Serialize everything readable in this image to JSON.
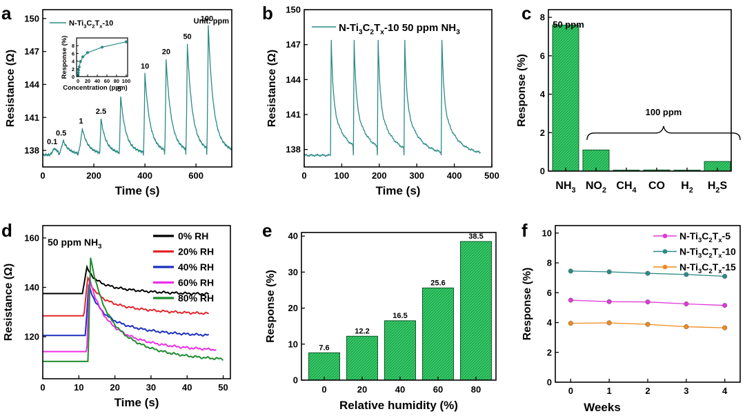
{
  "colors": {
    "teal": "#2a8a84",
    "green": "#33cc66",
    "greenDark": "#1e8c45",
    "black": "#000000",
    "red": "#e3262b",
    "blue": "#1a2fc0",
    "magenta": "#ee2fe6",
    "darkgreen": "#1f8c2e",
    "orange": "#f08a1d",
    "pink": "#e03ad8"
  },
  "chart_data": [
    {
      "panel": "a",
      "type": "line",
      "xlabel": "Time (s)",
      "ylabel": "Resistance (Ω)",
      "xlim": [
        0,
        740
      ],
      "ylim": [
        136.5,
        150.8
      ],
      "xticks": [
        "0",
        "200",
        "400",
        "600"
      ],
      "yticks": [
        "138",
        "141",
        "144",
        "147",
        "150"
      ],
      "legend": "N-Ti3C2Tx-10",
      "unit_note": "Unit: ppm",
      "concentrations": [
        "0.1",
        "0.5",
        "1",
        "2.5",
        "5",
        "10",
        "20",
        "50",
        "100"
      ],
      "peak_times": [
        45,
        80,
        155,
        228,
        305,
        400,
        483,
        566,
        648
      ],
      "peak_values": [
        138.2,
        138.9,
        140.0,
        140.9,
        143.0,
        145.0,
        146.3,
        147.7,
        149.4
      ],
      "baseline": 137.6,
      "inset": {
        "xlabel": "Concentration (ppm)",
        "ylabel": "Response (%)",
        "x": [
          0.1,
          0.5,
          1,
          2.5,
          5,
          10,
          20,
          50,
          100
        ],
        "y": [
          0.4,
          1.0,
          1.7,
          2.5,
          3.9,
          5.1,
          6.2,
          7.6,
          9.0
        ],
        "xticks": [
          "0",
          "20",
          "40",
          "60",
          "80",
          "100"
        ],
        "yticks": [
          "0",
          "2",
          "4",
          "6",
          "8"
        ]
      }
    },
    {
      "panel": "b",
      "type": "line",
      "xlabel": "Time (s)",
      "ylabel": "Resistance (Ω)",
      "xlim": [
        0,
        500
      ],
      "ylim": [
        136.5,
        150
      ],
      "xticks": [
        "0",
        "100",
        "200",
        "300",
        "400",
        "500"
      ],
      "yticks": [
        "138",
        "141",
        "144",
        "147",
        "150"
      ],
      "legend": "N-Ti3C2Tx-10  50 ppm NH3",
      "peak_times": [
        72,
        133,
        197,
        268,
        367
      ],
      "peak_value": 147.4,
      "baseline": 137.5
    },
    {
      "panel": "c",
      "type": "bar",
      "ylabel": "Response (%)",
      "ylim": [
        0,
        8.4
      ],
      "yticks": [
        "0",
        "2",
        "4",
        "6",
        "8"
      ],
      "categories": [
        "NH3",
        "NO2",
        "CH4",
        "CO",
        "H2",
        "H2S"
      ],
      "values": [
        7.6,
        1.1,
        0.05,
        0.06,
        0.05,
        0.5
      ],
      "annotations": [
        "50 ppm",
        "100 ppm"
      ]
    },
    {
      "panel": "d",
      "type": "line",
      "xlabel": "Time (s)",
      "ylabel": "Resistance (Ω)",
      "xlim": [
        0,
        52
      ],
      "ylim": [
        103,
        165
      ],
      "xticks": [
        "0",
        "10",
        "20",
        "30",
        "40",
        "50"
      ],
      "yticks": [
        "120",
        "140",
        "160"
      ],
      "title": "50 ppm NH3",
      "series": [
        {
          "name": "0% RH",
          "base": 137.5,
          "peak": 148,
          "final": 137,
          "end": 46
        },
        {
          "name": "20% RH",
          "base": 128.5,
          "peak": 144,
          "final": 129,
          "end": 46
        },
        {
          "name": "40% RH",
          "base": 120.5,
          "peak": 141,
          "final": 120,
          "end": 46
        },
        {
          "name": "60% RH",
          "base": 114,
          "peak": 144,
          "final": 114,
          "end": 48
        },
        {
          "name": "80% RH",
          "base": 110,
          "peak": 152.5,
          "final": 110,
          "end": 50
        }
      ]
    },
    {
      "panel": "e",
      "type": "bar",
      "xlabel": "Relative humidity (%)",
      "ylabel": "Response (%)",
      "ylim": [
        0,
        41
      ],
      "yticks": [
        "0",
        "10",
        "20",
        "30",
        "40"
      ],
      "categories": [
        "0",
        "20",
        "40",
        "60",
        "80"
      ],
      "values": [
        7.6,
        12.2,
        16.5,
        25.6,
        38.5
      ],
      "labels": [
        "7.6",
        "12.2",
        "16.5",
        "25.6",
        "38.5"
      ]
    },
    {
      "panel": "f",
      "type": "line",
      "xlabel": "Weeks",
      "ylabel": "Response (%)",
      "xlim": [
        -0.4,
        4.4
      ],
      "ylim": [
        0,
        10.5
      ],
      "xticks": [
        "0",
        "1",
        "2",
        "3",
        "4"
      ],
      "yticks": [
        "0",
        "2",
        "4",
        "6",
        "8",
        "10"
      ],
      "series": [
        {
          "name": "N-Ti3C2Tx-5",
          "values": [
            5.5,
            5.4,
            5.38,
            5.25,
            5.15
          ]
        },
        {
          "name": "N-Ti3C2Tx-10",
          "values": [
            7.45,
            7.4,
            7.3,
            7.22,
            7.1
          ]
        },
        {
          "name": "N-Ti3C2Tx-15",
          "values": [
            3.95,
            3.98,
            3.88,
            3.72,
            3.65
          ]
        }
      ]
    }
  ],
  "panel_letters": [
    "a",
    "b",
    "c",
    "d",
    "e",
    "f"
  ]
}
